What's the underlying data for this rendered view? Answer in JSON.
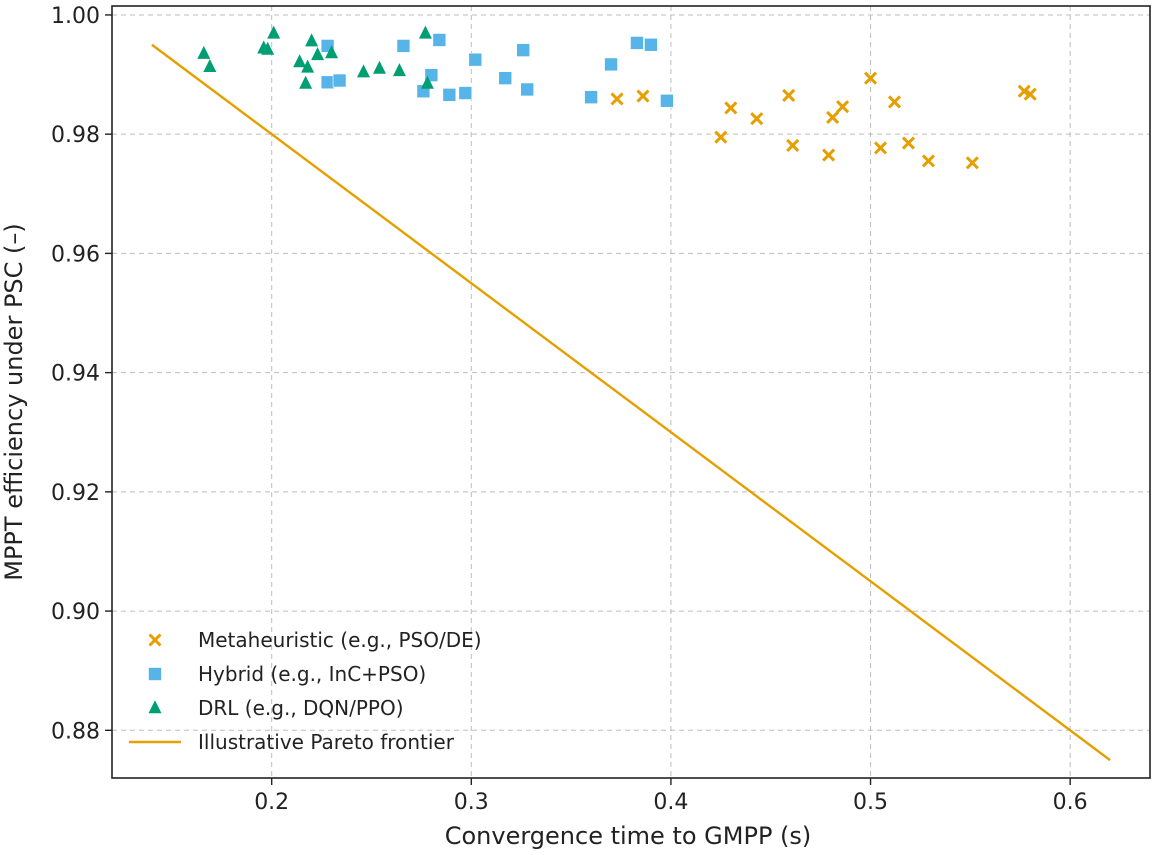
{
  "chart_data": {
    "type": "scatter",
    "title": "",
    "xlabel": "Convergence time to GMPP (s)",
    "ylabel": "MPPT efficiency under PSC (–)",
    "xlim": [
      0.12,
      0.64
    ],
    "ylim": [
      0.872,
      1.0015
    ],
    "grid": true,
    "legend_position": "lower-left",
    "x_ticks": [
      {
        "value": 0.2,
        "label": "0.2"
      },
      {
        "value": 0.3,
        "label": "0.3"
      },
      {
        "value": 0.4,
        "label": "0.4"
      },
      {
        "value": 0.5,
        "label": "0.5"
      },
      {
        "value": 0.6,
        "label": "0.6"
      }
    ],
    "y_ticks": [
      {
        "value": 0.88,
        "label": "0.88"
      },
      {
        "value": 0.9,
        "label": "0.90"
      },
      {
        "value": 0.92,
        "label": "0.92"
      },
      {
        "value": 0.94,
        "label": "0.94"
      },
      {
        "value": 0.96,
        "label": "0.96"
      },
      {
        "value": 0.98,
        "label": "0.98"
      },
      {
        "value": 1.0,
        "label": "1.00"
      }
    ],
    "series": [
      {
        "name": "Metaheuristic (e.g., PSO/DE)",
        "marker": "x",
        "color": "#E69F00",
        "points": [
          [
            0.373,
            0.9859
          ],
          [
            0.386,
            0.9864
          ],
          [
            0.425,
            0.9795
          ],
          [
            0.43,
            0.9844
          ],
          [
            0.443,
            0.9826
          ],
          [
            0.459,
            0.9865
          ],
          [
            0.461,
            0.9781
          ],
          [
            0.479,
            0.9765
          ],
          [
            0.481,
            0.9828
          ],
          [
            0.486,
            0.9846
          ],
          [
            0.5,
            0.9894
          ],
          [
            0.505,
            0.9777
          ],
          [
            0.512,
            0.9854
          ],
          [
            0.519,
            0.9785
          ],
          [
            0.529,
            0.9755
          ],
          [
            0.551,
            0.9752
          ],
          [
            0.577,
            0.9872
          ],
          [
            0.58,
            0.9867
          ]
        ]
      },
      {
        "name": "Hybrid (e.g., InC+PSO)",
        "marker": "square",
        "color": "#56B4E9",
        "points": [
          [
            0.228,
            0.9948
          ],
          [
            0.228,
            0.9887
          ],
          [
            0.234,
            0.989
          ],
          [
            0.266,
            0.9948
          ],
          [
            0.276,
            0.9872
          ],
          [
            0.28,
            0.9899
          ],
          [
            0.284,
            0.9958
          ],
          [
            0.289,
            0.9866
          ],
          [
            0.297,
            0.9869
          ],
          [
            0.302,
            0.9925
          ],
          [
            0.317,
            0.9894
          ],
          [
            0.326,
            0.9941
          ],
          [
            0.328,
            0.9875
          ],
          [
            0.36,
            0.9862
          ],
          [
            0.37,
            0.9917
          ],
          [
            0.383,
            0.9953
          ],
          [
            0.39,
            0.995
          ],
          [
            0.398,
            0.9856
          ]
        ]
      },
      {
        "name": "DRL (e.g., DQN/PPO)",
        "marker": "triangle",
        "color": "#009E73",
        "points": [
          [
            0.166,
            0.9935
          ],
          [
            0.169,
            0.9913
          ],
          [
            0.196,
            0.9944
          ],
          [
            0.198,
            0.9942
          ],
          [
            0.201,
            0.9969
          ],
          [
            0.214,
            0.9921
          ],
          [
            0.217,
            0.9885
          ],
          [
            0.218,
            0.9912
          ],
          [
            0.22,
            0.9956
          ],
          [
            0.223,
            0.9933
          ],
          [
            0.23,
            0.9936
          ],
          [
            0.246,
            0.9904
          ],
          [
            0.254,
            0.991
          ],
          [
            0.264,
            0.9906
          ],
          [
            0.277,
            0.9969
          ],
          [
            0.278,
            0.9885
          ]
        ]
      }
    ],
    "lines": [
      {
        "name": "Illustrative Pareto frontier",
        "color": "#E69F00",
        "points": [
          [
            0.14,
            0.995
          ],
          [
            0.62,
            0.875
          ]
        ]
      }
    ]
  }
}
